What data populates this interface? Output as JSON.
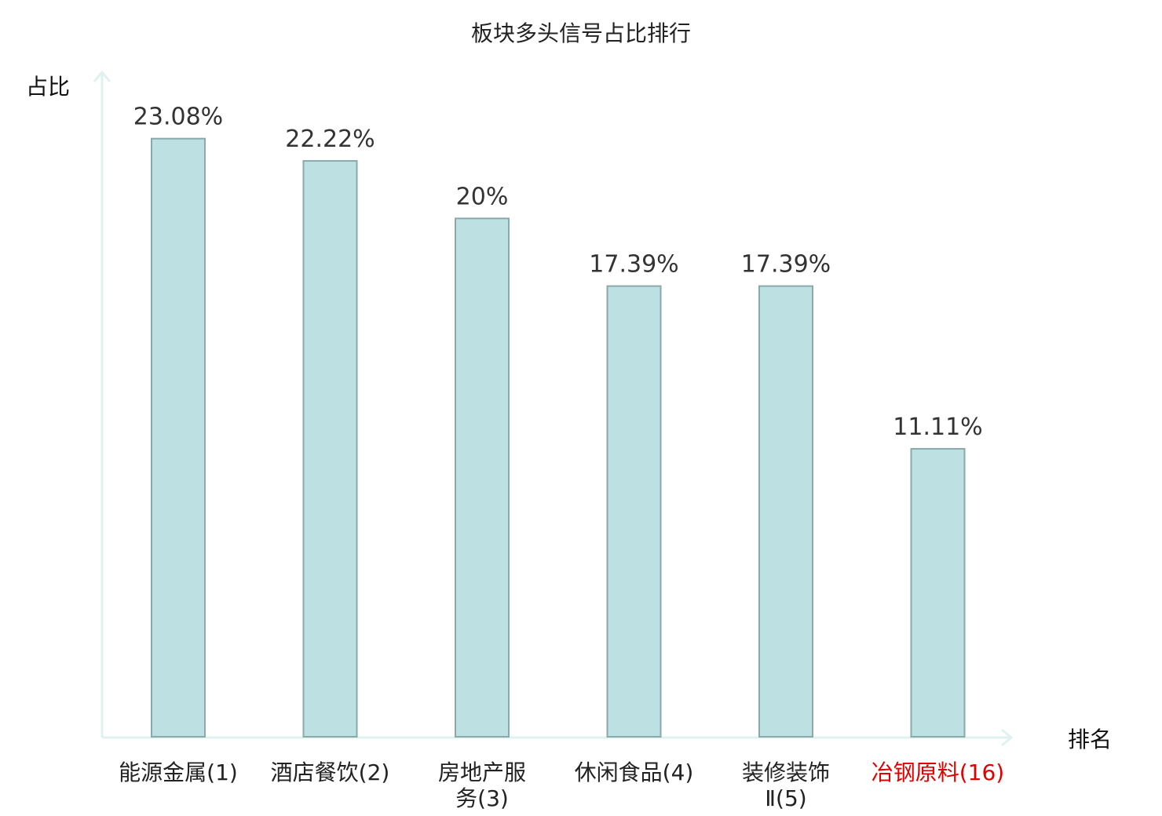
{
  "chart_data": {
    "type": "bar",
    "title": "板块多头信号占比排行",
    "ylabel": "占比",
    "xlabel": "排名",
    "categories": [
      [
        "能源金属(1)"
      ],
      [
        "酒店餐饮(2)"
      ],
      [
        "房地产服",
        "务(3)"
      ],
      [
        "休闲食品(4)"
      ],
      [
        "装修装饰",
        "Ⅱ(5)"
      ],
      [
        "冶钢原料(16)"
      ]
    ],
    "values": [
      23.08,
      22.22,
      20,
      17.39,
      17.39,
      11.11
    ],
    "value_labels": [
      "23.08%",
      "22.22%",
      "20%",
      "17.39%",
      "17.39%",
      "11.11%"
    ],
    "highlight_index": 5,
    "ylim": [
      0,
      26.4
    ],
    "grid": false,
    "colors": {
      "bar_fill": "#bde1e3",
      "bar_stroke": "#8aa9aa",
      "axis": "#e0f2ef",
      "label": "#222222",
      "highlight": "#e00000"
    }
  }
}
